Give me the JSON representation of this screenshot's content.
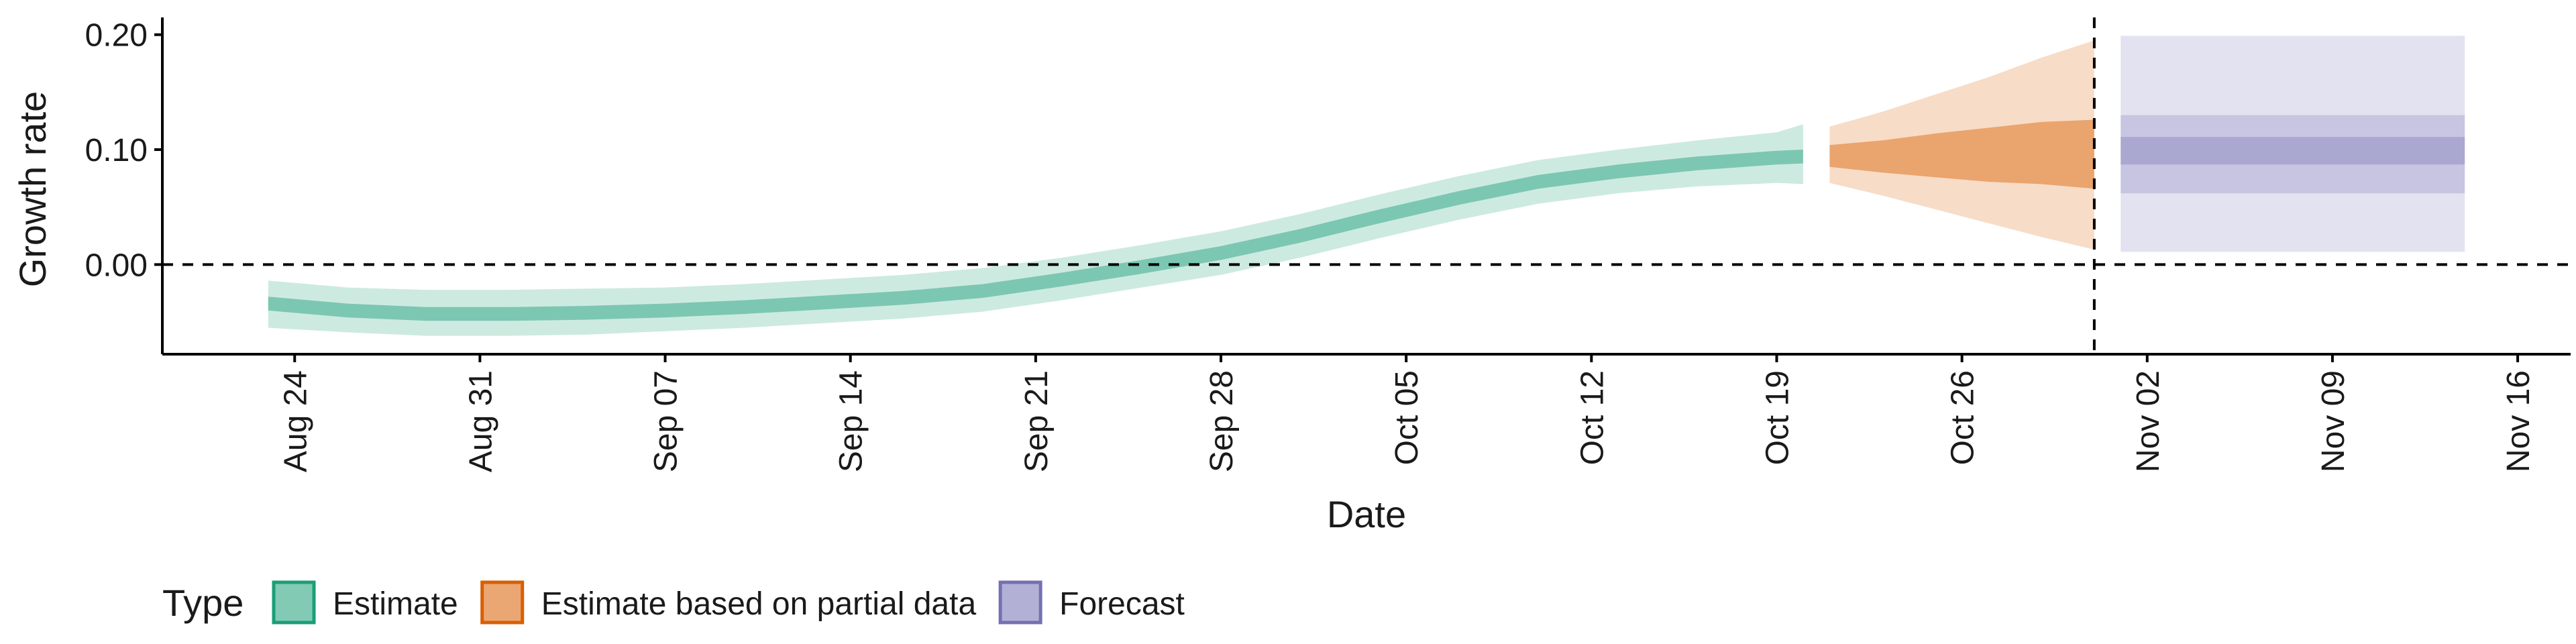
{
  "chart_data": {
    "type": "area",
    "xlabel": "Date",
    "ylabel": "Growth rate",
    "x_range": [
      "2020-08-19",
      "2020-11-18"
    ],
    "ylim": [
      -0.078,
      0.215
    ],
    "y_ticks": [
      0.0,
      0.1,
      0.2
    ],
    "y_tick_labels": [
      "0.00",
      "0.10",
      "0.20"
    ],
    "x_ticks": [
      "2020-08-24",
      "2020-08-31",
      "2020-09-07",
      "2020-09-14",
      "2020-09-21",
      "2020-09-28",
      "2020-10-05",
      "2020-10-12",
      "2020-10-19",
      "2020-10-26",
      "2020-11-02",
      "2020-11-09",
      "2020-11-16"
    ],
    "x_tick_labels": [
      "Aug 24",
      "Aug 31",
      "Sep 07",
      "Sep 14",
      "Sep 21",
      "Sep 28",
      "Oct 05",
      "Oct 12",
      "Oct 19",
      "Oct 26",
      "Nov 02",
      "Nov 09",
      "Nov 16"
    ],
    "reference_lines": [
      {
        "axis": "y",
        "value": 0,
        "style": "dashed"
      },
      {
        "axis": "x",
        "value": "2020-10-31",
        "style": "dashed"
      }
    ],
    "grid": false,
    "legend": {
      "title": "Type",
      "position": "bottom-left"
    },
    "series": [
      {
        "name": "Estimate",
        "color": "#1b9e77",
        "dates": [
          "2020-08-23",
          "2020-08-26",
          "2020-08-29",
          "2020-09-01",
          "2020-09-04",
          "2020-09-07",
          "2020-09-10",
          "2020-09-13",
          "2020-09-16",
          "2020-09-19",
          "2020-09-22",
          "2020-09-25",
          "2020-09-28",
          "2020-10-01",
          "2020-10-04",
          "2020-10-07",
          "2020-10-10",
          "2020-10-13",
          "2020-10-16",
          "2020-10-19",
          "2020-10-20"
        ],
        "median": [
          -0.034,
          -0.04,
          -0.043,
          -0.043,
          -0.042,
          -0.04,
          -0.037,
          -0.033,
          -0.029,
          -0.023,
          -0.013,
          -0.002,
          0.01,
          0.025,
          0.042,
          0.058,
          0.072,
          0.081,
          0.088,
          0.093,
          0.094
        ],
        "inner": [
          [
            -0.04,
            -0.028
          ],
          [
            -0.046,
            -0.034
          ],
          [
            -0.049,
            -0.037
          ],
          [
            -0.049,
            -0.037
          ],
          [
            -0.048,
            -0.036
          ],
          [
            -0.046,
            -0.034
          ],
          [
            -0.043,
            -0.031
          ],
          [
            -0.039,
            -0.027
          ],
          [
            -0.035,
            -0.023
          ],
          [
            -0.029,
            -0.017
          ],
          [
            -0.019,
            -0.007
          ],
          [
            -0.008,
            0.004
          ],
          [
            0.004,
            0.016
          ],
          [
            0.019,
            0.031
          ],
          [
            0.036,
            0.048
          ],
          [
            0.052,
            0.064
          ],
          [
            0.066,
            0.078
          ],
          [
            0.075,
            0.087
          ],
          [
            0.082,
            0.094
          ],
          [
            0.087,
            0.099
          ],
          [
            0.088,
            0.1
          ]
        ],
        "outer": [
          [
            -0.055,
            -0.014
          ],
          [
            -0.059,
            -0.02
          ],
          [
            -0.062,
            -0.022
          ],
          [
            -0.062,
            -0.022
          ],
          [
            -0.061,
            -0.021
          ],
          [
            -0.058,
            -0.02
          ],
          [
            -0.055,
            -0.017
          ],
          [
            -0.051,
            -0.013
          ],
          [
            -0.047,
            -0.009
          ],
          [
            -0.041,
            -0.003
          ],
          [
            -0.031,
            0.006
          ],
          [
            -0.02,
            0.017
          ],
          [
            -0.009,
            0.029
          ],
          [
            0.006,
            0.044
          ],
          [
            0.023,
            0.061
          ],
          [
            0.039,
            0.077
          ],
          [
            0.053,
            0.091
          ],
          [
            0.062,
            0.1
          ],
          [
            0.068,
            0.108
          ],
          [
            0.071,
            0.115
          ],
          [
            0.07,
            0.122
          ]
        ]
      },
      {
        "name": "Estimate based on partial data",
        "color": "#d95f02",
        "dates": [
          "2020-10-21",
          "2020-10-23",
          "2020-10-25",
          "2020-10-27",
          "2020-10-29",
          "2020-10-31"
        ],
        "median": [
          0.094,
          0.095,
          0.097,
          0.098,
          0.1,
          0.099
        ],
        "inner": [
          [
            0.085,
            0.104
          ],
          [
            0.08,
            0.108
          ],
          [
            0.076,
            0.114
          ],
          [
            0.072,
            0.119
          ],
          [
            0.07,
            0.124
          ],
          [
            0.066,
            0.126
          ]
        ],
        "outer": [
          [
            0.071,
            0.12
          ],
          [
            0.06,
            0.133
          ],
          [
            0.048,
            0.148
          ],
          [
            0.036,
            0.163
          ],
          [
            0.024,
            0.18
          ],
          [
            0.013,
            0.195
          ]
        ]
      },
      {
        "name": "Forecast",
        "color": "#7570b3",
        "dates": [
          "2020-11-01",
          "2020-11-14"
        ],
        "median": [
          0.099,
          0.099
        ],
        "inner": [
          [
            0.087,
            0.111
          ],
          [
            0.087,
            0.111
          ]
        ],
        "mid": [
          [
            0.062,
            0.13
          ],
          [
            0.062,
            0.13
          ]
        ],
        "outer": [
          [
            0.011,
            0.199
          ],
          [
            0.011,
            0.199
          ]
        ]
      }
    ]
  }
}
